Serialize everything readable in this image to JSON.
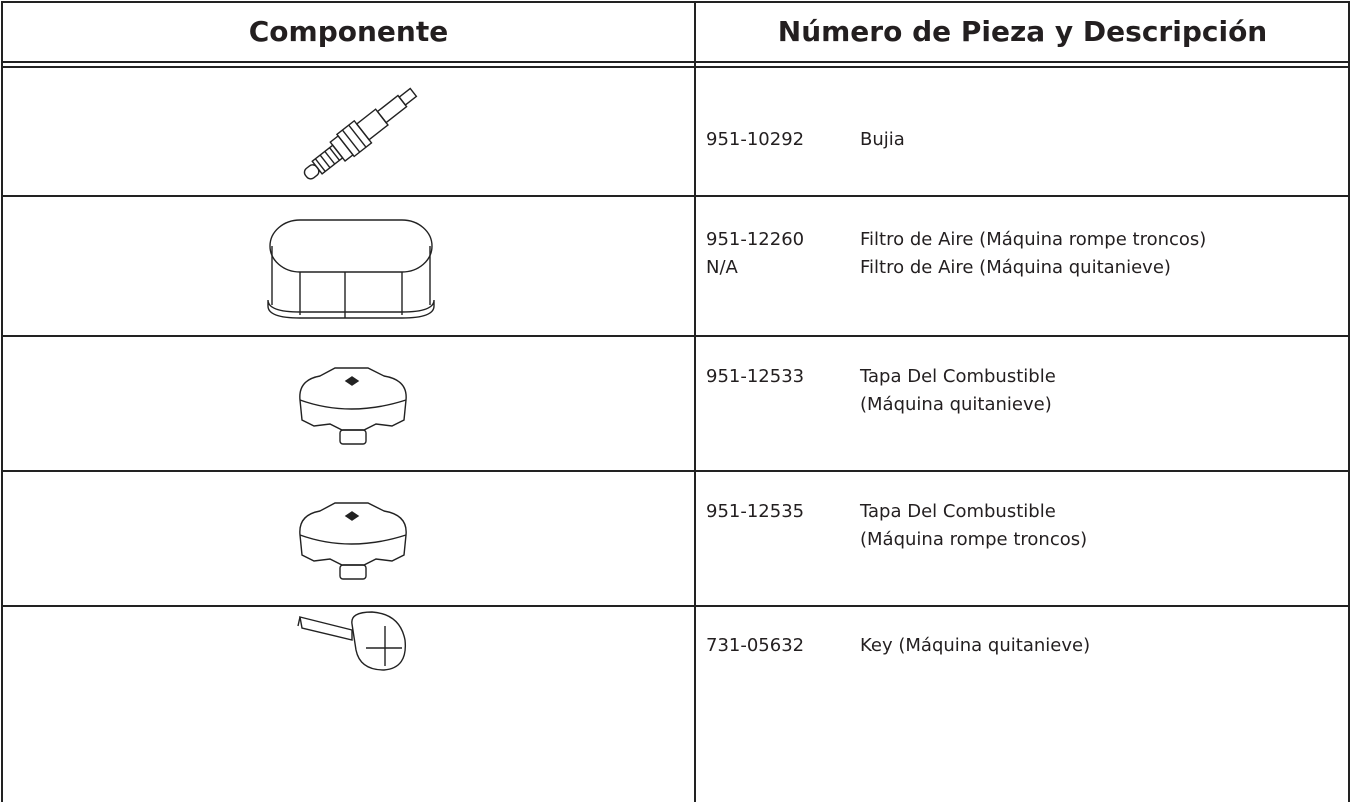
{
  "header": {
    "columns": [
      "Componente",
      "Número de Pieza y Descripción"
    ]
  },
  "rows": [
    {
      "parts": [
        {
          "number": "951-10292",
          "description": [
            "Bujia"
          ]
        }
      ]
    },
    {
      "parts": [
        {
          "number": "951-12260",
          "description": [
            "Filtro de Aire (Máquina rompe troncos)"
          ]
        },
        {
          "number": "N/A",
          "description": [
            "Filtro de Aire (Máquina quitanieve)"
          ]
        }
      ]
    },
    {
      "parts": [
        {
          "number": "951-12533",
          "description": [
            "Tapa Del Combustible",
            "(Máquina quitanieve)"
          ]
        }
      ]
    },
    {
      "parts": [
        {
          "number": "951-12535",
          "description": [
            "Tapa Del Combustible",
            "(Máquina rompe troncos)"
          ]
        }
      ]
    },
    {
      "parts": [
        {
          "number": "731-05632",
          "description": [
            "Key (Máquina quitanieve)"
          ]
        }
      ]
    }
  ]
}
